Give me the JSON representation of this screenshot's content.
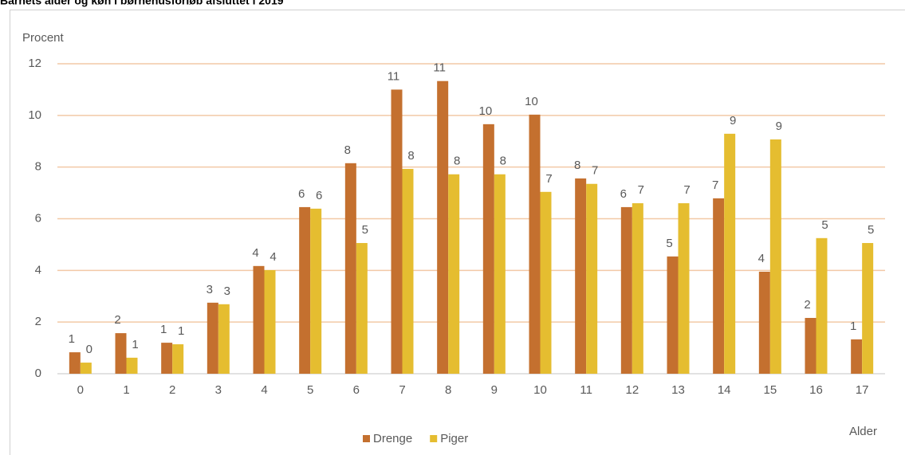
{
  "chart_data": {
    "type": "bar",
    "title": "Barnets alder og køn i børnehusforløb afsluttet i 2019",
    "y_label": "Procent",
    "x_label": "Alder",
    "categories": [
      "0",
      "1",
      "2",
      "3",
      "4",
      "5",
      "6",
      "7",
      "8",
      "9",
      "10",
      "11",
      "12",
      "13",
      "14",
      "15",
      "16",
      "17"
    ],
    "series": [
      {
        "name": "Drenge",
        "color": "#c4702f",
        "values": [
          0.83,
          1.57,
          1.2,
          2.75,
          4.17,
          6.45,
          8.15,
          11.0,
          11.33,
          9.66,
          10.03,
          7.56,
          6.45,
          4.54,
          6.79,
          3.95,
          2.16,
          1.33
        ],
        "value_labels": [
          "1",
          "2",
          "1",
          "3",
          "4",
          "6",
          "8",
          "11",
          "11",
          "10",
          "10",
          "8",
          "6",
          "5",
          "7",
          "4",
          "2",
          "1"
        ]
      },
      {
        "name": "Piger",
        "color": "#e5bd30",
        "values": [
          0.43,
          0.62,
          1.14,
          2.69,
          4.01,
          6.39,
          5.06,
          7.93,
          7.72,
          7.72,
          7.04,
          7.35,
          6.6,
          6.6,
          9.29,
          9.07,
          5.25,
          5.06
        ],
        "value_labels": [
          "0",
          "1",
          "1",
          "3",
          "4",
          "6",
          "5",
          "8",
          "8",
          "8",
          "7",
          "7",
          "7",
          "7",
          "9",
          "9",
          "5",
          "5"
        ]
      }
    ],
    "ylim": [
      0,
      12
    ],
    "yticks": [
      0,
      2,
      4,
      6,
      8,
      10,
      12
    ],
    "grid": true
  }
}
